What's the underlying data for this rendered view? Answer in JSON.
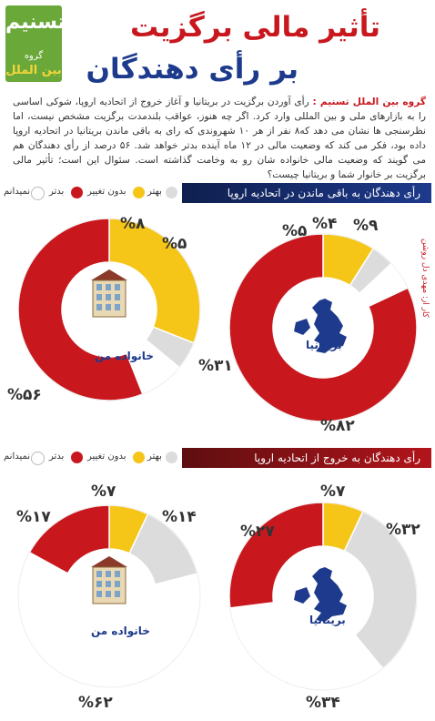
{
  "logo": {
    "glyph": "تسنیم",
    "line1": "گروه",
    "line2": "بین الملل",
    "color": "#6aa83a"
  },
  "title": {
    "line1": "تأثیر مالی برگزیت",
    "line2": "بر رأی دهندگان"
  },
  "intro": {
    "source": "گروه بین الملل تسنیم :",
    "text": "رأی آوردن برگزیت در بریتانیا و آغاز خروج از اتحادیه اروپا، شوکی اساسی را به بازارهای ملی و بین المللی وارد کرد. اگر چه هنوز، عواقب بلندمدت برگزیت مشخص نیست، اما نظرسنجی ها نشان می دهد که۸ نفر از هر ۱۰ شهروندی که رای به باقی ماندن بریتانیا در اتحادیه اروپا داده بود، فکر می کند که وضعیت مالی در ۱۲ ماه آینده بدتر خواهد شد. ۵۶ درصد از رأی دهندگان هم می گویند که وضعیت مالی خانواده شان رو به وخامت گذاشته است. سئوال این است؛ تأثیر مالی برگزیت بر خانوار شما و بریتانیا چیست؟"
  },
  "legend": {
    "better": "بهتر",
    "no_change": "بدون تغییر",
    "worse": "بدتر",
    "dont_know": "نمیدانم"
  },
  "credit": "کار از: مهدی دل روشن",
  "colors": {
    "worse": "#c8181e",
    "no_change": "#f5c518",
    "better": "#dcdcdc",
    "dont_know": "#ffffff",
    "navy": "#1e3a8c"
  },
  "chart_data": [
    {
      "type": "pie",
      "section": "رأی دهندگان به باقی ماندن در اتحادیه اروپا",
      "center_label": "بریتانیا",
      "categories": [
        "بدتر",
        "بدون تغییر",
        "بهتر",
        "نمیدانم"
      ],
      "values": [
        82,
        9,
        4,
        5
      ],
      "labels": [
        "%۸۲",
        "%۹",
        "%۴",
        "%۵"
      ]
    },
    {
      "type": "pie",
      "section": "رأی دهندگان به باقی ماندن در اتحادیه اروپا",
      "center_label": "خانواده من",
      "categories": [
        "بدتر",
        "بدون تغییر",
        "بهتر",
        "نمیدانم"
      ],
      "values": [
        56,
        31,
        5,
        8
      ],
      "labels": [
        "%۵۶",
        "%۳۱",
        "%۵",
        "%۸"
      ]
    },
    {
      "type": "pie",
      "section": "رأی دهندگان به خروج از اتحادیه اروپا",
      "center_label": "بریتانیا",
      "categories": [
        "بدتر",
        "بدون تغییر",
        "بهتر",
        "نمیدانم"
      ],
      "values": [
        27,
        7,
        32,
        34
      ],
      "labels": [
        "%۲۷",
        "%۷",
        "%۳۲",
        "%۳۴"
      ]
    },
    {
      "type": "pie",
      "section": "رأی دهندگان به خروج از اتحادیه اروپا",
      "center_label": "خانواده من",
      "categories": [
        "بدتر",
        "بدون تغییر",
        "بهتر",
        "نمیدانم"
      ],
      "values": [
        17,
        7,
        14,
        62
      ],
      "labels": [
        "%۱۷",
        "%۷",
        "%۱۴",
        "%۶۲"
      ]
    }
  ]
}
